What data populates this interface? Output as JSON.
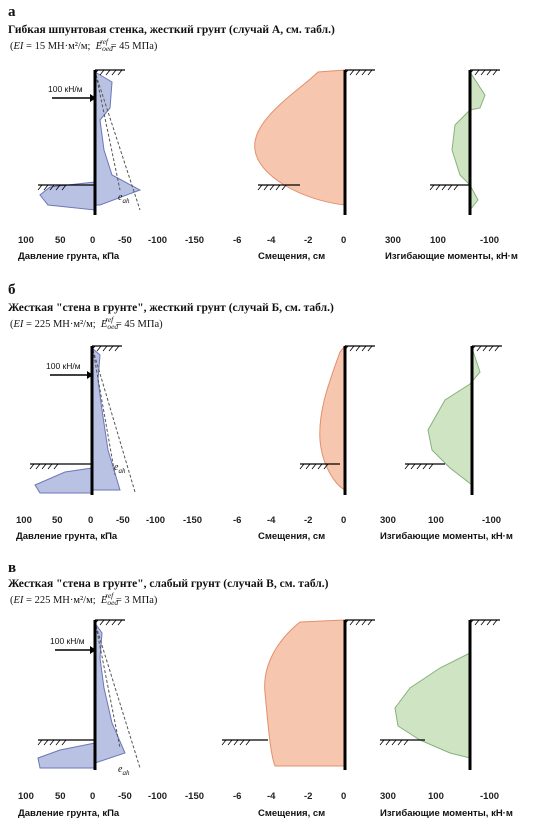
{
  "panels": [
    {
      "letter": "а",
      "title": "Гибкая шпунтовая стенка, жесткий грунт (случай А, см. табл.)",
      "ei_value": "15 МН·м²/м",
      "eoed_value": "45 МПа",
      "load_label": "100 кН/м",
      "eah_label": "e",
      "eah_sub": "ah"
    },
    {
      "letter": "б",
      "title": "Жесткая \"стена в грунте\",  жесткий грунт (случай Б, см. табл.)",
      "ei_value": "225 МН·м²/м",
      "eoed_value": "45 МПа",
      "load_label": "100 кН/м",
      "eah_label": "e",
      "eah_sub": "ah"
    },
    {
      "letter": "в",
      "title": "Жесткая \"стена в грунте\",  слабый грунт (случай В, см. табл.)",
      "ei_value": "225 МН·м²/м",
      "eoed_value": "3 МПа",
      "load_label": "100 кН/м",
      "eah_label": "e",
      "eah_sub": "ah"
    }
  ],
  "common": {
    "ei_symbol": "EI",
    "eoed_symbol": "E",
    "eoed_sub": "oed",
    "eoed_sup": "ref",
    "pressure_axis": {
      "label": "Давление грунта, кПа",
      "ticks": [
        "100",
        "50",
        "0",
        "-50",
        "-100",
        "-150"
      ]
    },
    "displacement_axis": {
      "label": "Смещения, см",
      "ticks": [
        "-6",
        "-4",
        "-2",
        "0"
      ]
    },
    "moment_axis": {
      "label": "Изгибающие моменты, кН·м",
      "ticks": [
        "300",
        "100",
        "-100"
      ]
    }
  },
  "colors": {
    "pressure_fill": "#b9c2e3",
    "pressure_stroke": "#6b77b8",
    "displacement_fill": "#f7c6ae",
    "displacement_stroke": "#e2906c",
    "moment_fill": "#cfe4c3",
    "moment_stroke": "#86b27a"
  }
}
